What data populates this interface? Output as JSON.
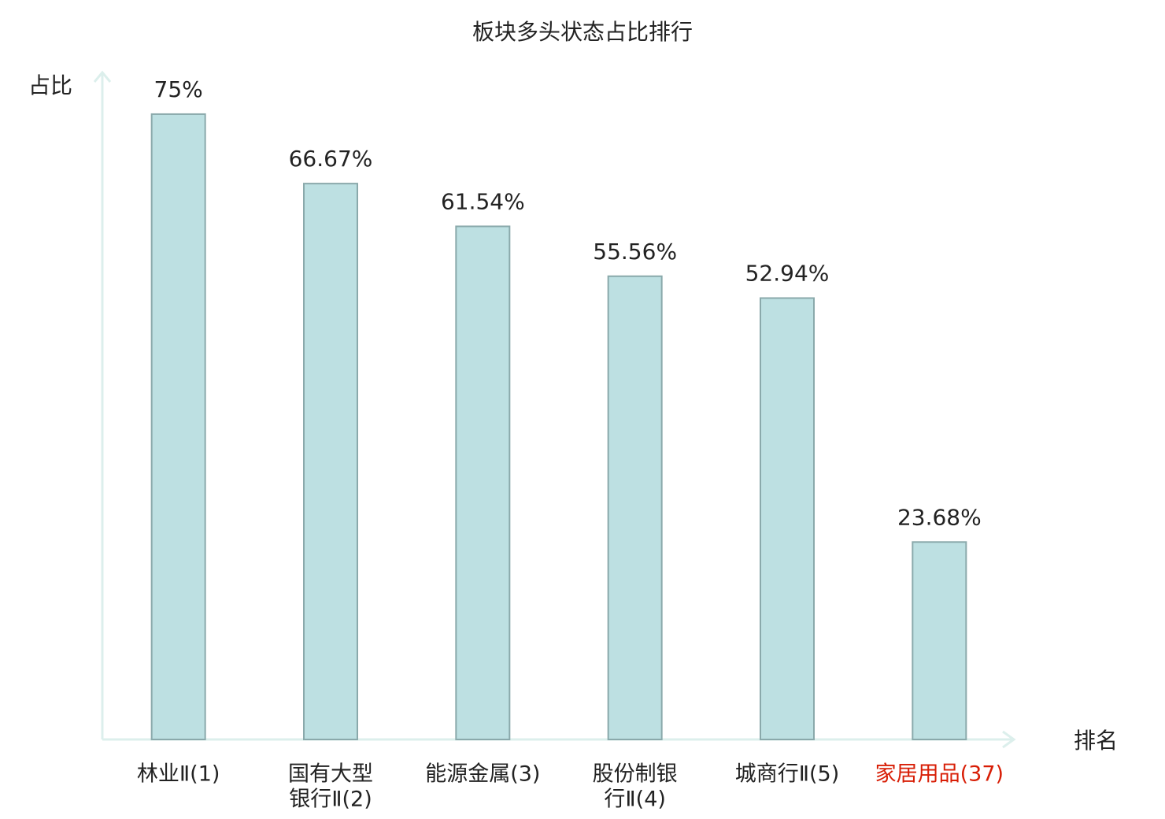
{
  "chart_data": {
    "type": "bar",
    "title": "板块多头状态占比排行",
    "y_label": "占比",
    "x_label": "排名",
    "categories": [
      [
        "林业Ⅱ(1)"
      ],
      [
        "国有大型",
        "银行Ⅱ(2)"
      ],
      [
        "能源金属(3)"
      ],
      [
        "股份制银",
        "行Ⅱ(4)"
      ],
      [
        "城商行Ⅱ(5)"
      ],
      [
        "家居用品(37)"
      ]
    ],
    "category_colors": [
      "#222222",
      "#222222",
      "#222222",
      "#222222",
      "#222222",
      "#d81e06"
    ],
    "values": [
      75,
      66.67,
      61.54,
      55.56,
      52.94,
      23.68
    ],
    "value_labels": [
      "75%",
      "66.67%",
      "61.54%",
      "55.56%",
      "52.94%",
      "23.68%"
    ],
    "color": "#bde0e2",
    "ylim": [
      0,
      80
    ]
  }
}
